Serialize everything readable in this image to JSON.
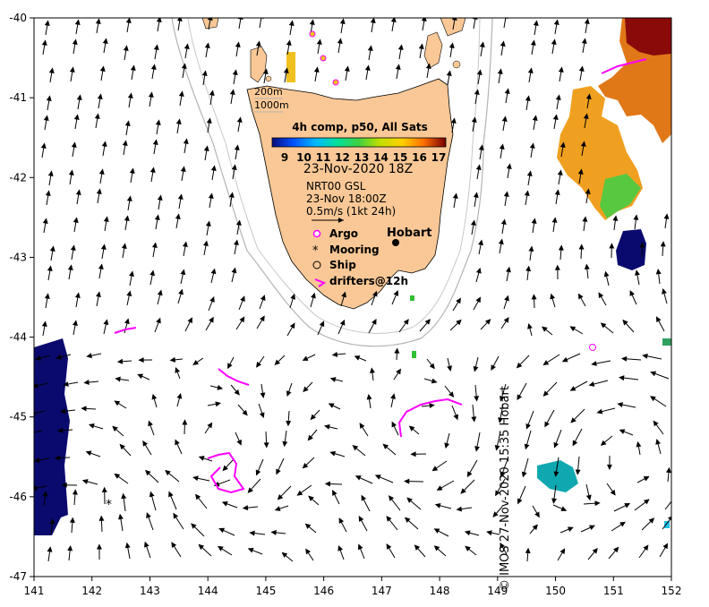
{
  "map": {
    "lon_ticks": [
      "141",
      "142",
      "143",
      "144",
      "145",
      "146",
      "147",
      "148",
      "149",
      "150",
      "151",
      "152"
    ],
    "lat_ticks": [
      "-40",
      "-41",
      "-42",
      "-43",
      "-44",
      "-45",
      "-46",
      "-47"
    ],
    "lon_range": [
      141,
      152
    ],
    "lat_range": [
      -47,
      -40
    ],
    "colors": {
      "land": "#f9c896",
      "ocean": "#ffffff",
      "arrow": "#000000",
      "isobath": "#b4b4b4",
      "drifter": "#ff00ff",
      "cold_sst": "#0a0a6e"
    }
  },
  "legend": {
    "isobath_200": "200m",
    "isobath_1000": "1000m",
    "sst_title": "4h comp, p50, All Sats",
    "colorbar_ticks": [
      "9",
      "10",
      "11",
      "12",
      "13",
      "14",
      "15",
      "16",
      "17"
    ],
    "colorbar_colors": [
      "#0b0b7a",
      "#0060ff",
      "#00c0ff",
      "#00e0a0",
      "#40d040",
      "#c0e000",
      "#ffd000",
      "#ff8000",
      "#c02000",
      "#7a0000"
    ],
    "date": "23-Nov-2020 18Z",
    "current_source": "NRT00 GSL",
    "current_time": "23-Nov 18:00Z",
    "scale_note": "0.5m/s (1kt 24h)",
    "argo": "Argo",
    "mooring": "Mooring",
    "ship": "Ship",
    "drifters": "drifters@12h",
    "city": "Hobart"
  },
  "credit": "© IMOS 27-Nov-2020 15:35 Hobart"
}
